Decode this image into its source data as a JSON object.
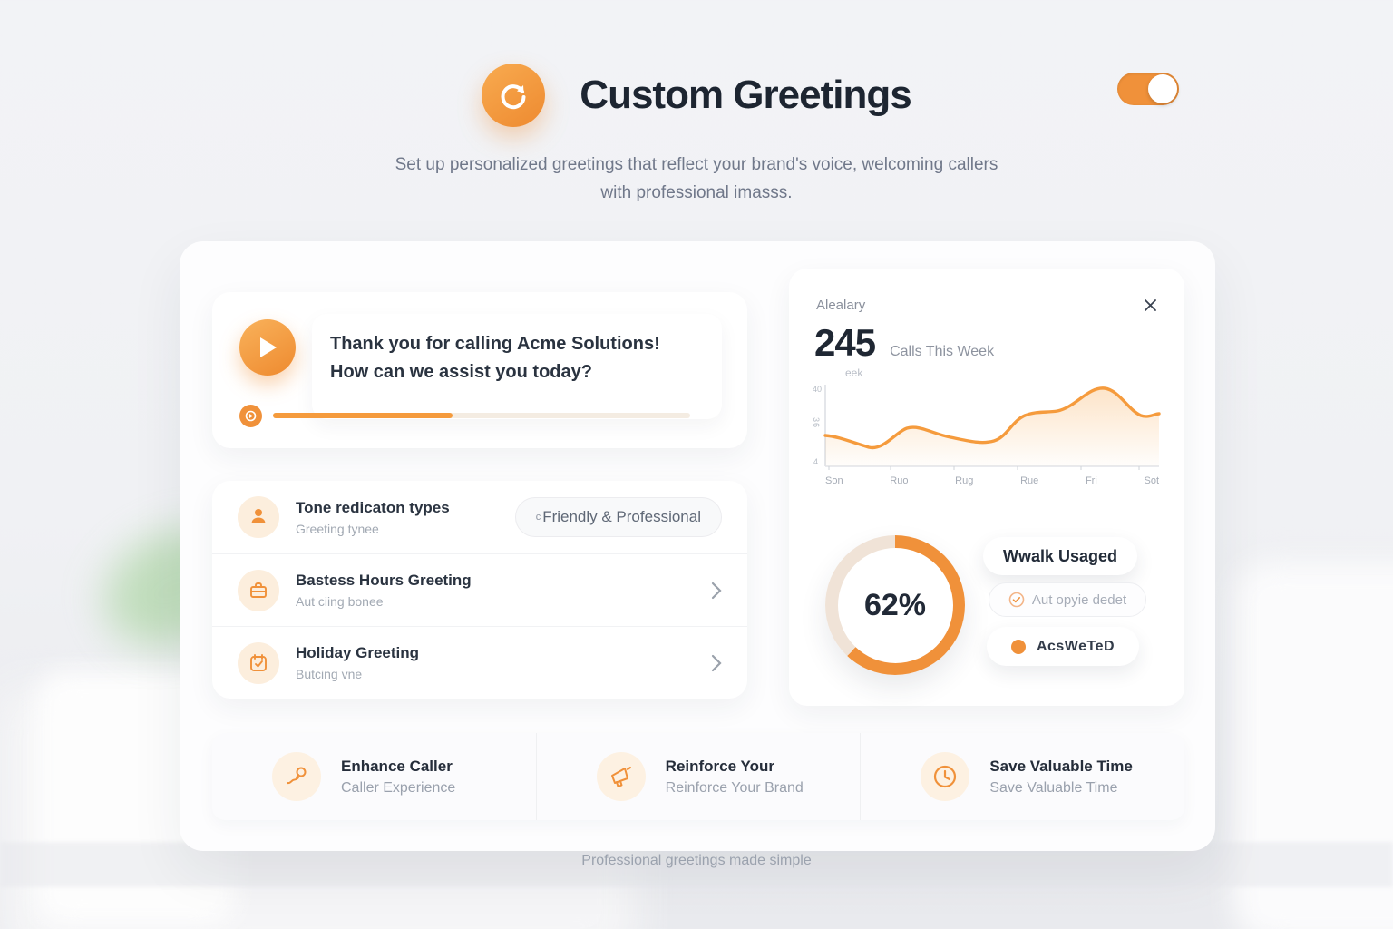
{
  "colors": {
    "accent": "#F0913A",
    "accent_light": "#FCEEDD",
    "donut_track": "#F0E3D7",
    "text_dark": "#1F2733",
    "text_gray": "#70788A"
  },
  "header": {
    "title": "Custom Greetings",
    "subtitle_line1": "Set up personalized greetings that reflect your brand's voice, welcoming callers",
    "subtitle_line2": "with professional imasss.",
    "toggle_state": "on"
  },
  "player": {
    "message_line1": "Thank you for calling Acme Solutions!",
    "message_line2": "How can we assist you today?",
    "progress_percent": 43
  },
  "greeting_list": {
    "items": [
      {
        "title": "Tone redicaton types",
        "subtitle": "Greeting tynee",
        "value_prefix": "c",
        "value": "Friendly & Professional"
      },
      {
        "title": "Bastess Hours Greeting",
        "subtitle": "Aut ciing bonee"
      },
      {
        "title": "Holiday Greeting",
        "subtitle": "Butcing vne"
      }
    ]
  },
  "analytics": {
    "title": "Alealary",
    "calls_count": "245",
    "calls_label": "Calls This Week",
    "calls_sublabel": "eek",
    "donut_percent": 62,
    "donut_label": "62%",
    "buttons": {
      "primary": "Wwalk Usaged",
      "secondary": "Aut opyie dedet",
      "tertiary": "AcsWeTeD"
    }
  },
  "chart_data": {
    "type": "area",
    "title": "Calls This Week",
    "x_labels": [
      "Son",
      "Ruo",
      "Rug",
      "Rue",
      "Fri",
      "Sot"
    ],
    "y_tick_labels": [
      "40",
      "36",
      "4"
    ],
    "values": [
      33,
      28,
      36,
      32,
      30,
      31,
      46,
      48,
      50,
      62,
      50,
      44,
      46
    ],
    "values_note": "approximate calls per point Son through Sot, peak 62 between Fri and Sot",
    "ylim": [
      0,
      70
    ],
    "line_color": "#F59B3D",
    "fill": "orange-gradient-to-transparent",
    "grid": false,
    "legend": "none"
  },
  "features": [
    {
      "title": "Enhance Caller",
      "subtitle": "Caller Experience",
      "icon": "wand-icon"
    },
    {
      "title": "Reinforce Your",
      "subtitle": "Reinforce Your Brand",
      "icon": "megaphone-icon"
    },
    {
      "title": "Save Valuable Time",
      "subtitle": "Save Valuable Time",
      "icon": "clock-icon"
    }
  ],
  "footer": {
    "tagline": "Professional greetings made simple"
  }
}
